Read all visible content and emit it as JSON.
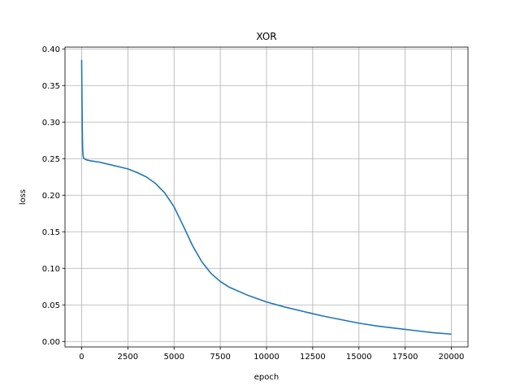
{
  "chart_data": {
    "type": "line",
    "title": "XOR",
    "xlabel": "epoch",
    "ylabel": "loss",
    "xlim": [
      -900,
      20900
    ],
    "ylim": [
      -0.0075,
      0.4025
    ],
    "grid": true,
    "xticks": [
      0,
      2500,
      5000,
      7500,
      10000,
      12500,
      15000,
      17500,
      20000
    ],
    "xtick_labels": [
      "0",
      "2500",
      "5000",
      "7500",
      "10000",
      "12500",
      "15000",
      "17500",
      "20000"
    ],
    "yticks": [
      0.0,
      0.05,
      0.1,
      0.15,
      0.2,
      0.25,
      0.3,
      0.35,
      0.4
    ],
    "ytick_labels": [
      "0.00",
      "0.05",
      "0.10",
      "0.15",
      "0.20",
      "0.25",
      "0.30",
      "0.35",
      "0.40"
    ],
    "line_color": "#1f77b4",
    "series": [
      {
        "x": [
          0,
          20,
          40,
          60,
          80,
          100,
          150,
          200,
          300,
          500,
          1000,
          1500,
          2000,
          2500,
          3000,
          3500,
          4000,
          4500,
          5000,
          5500,
          6000,
          6500,
          7000,
          7500,
          8000,
          9000,
          10000,
          11000,
          12000,
          13000,
          14000,
          15000,
          16000,
          17000,
          18000,
          19000,
          20000
        ],
        "y": [
          0.385,
          0.33,
          0.28,
          0.26,
          0.254,
          0.251,
          0.25,
          0.249,
          0.248,
          0.247,
          0.245,
          0.242,
          0.239,
          0.236,
          0.231,
          0.225,
          0.216,
          0.203,
          0.184,
          0.158,
          0.131,
          0.109,
          0.093,
          0.082,
          0.074,
          0.063,
          0.054,
          0.047,
          0.041,
          0.035,
          0.03,
          0.025,
          0.021,
          0.018,
          0.015,
          0.012,
          0.01
        ]
      }
    ]
  }
}
